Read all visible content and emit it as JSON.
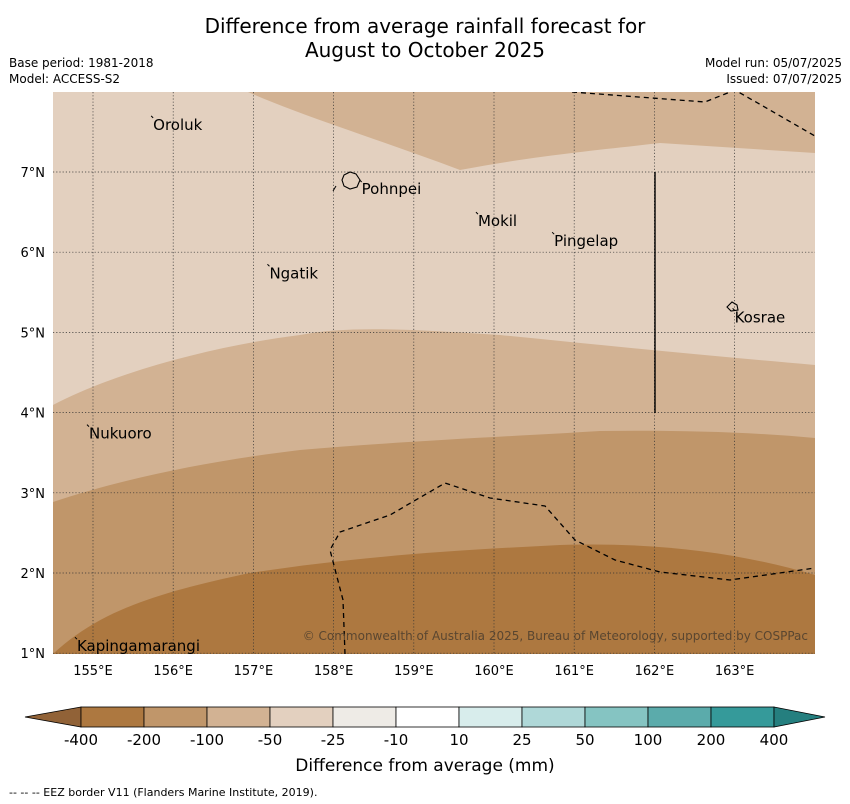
{
  "title": {
    "line1": "Difference from average rainfall forecast for",
    "line2": "August to October 2025"
  },
  "meta": {
    "base_period": "Base period: 1981-2018",
    "model": "Model: ACCESS-S2",
    "model_run": "Model run: 05/07/2025",
    "issued": "Issued: 07/07/2025"
  },
  "map": {
    "lon_range": [
      154.5,
      164.0
    ],
    "lat_range": [
      1.0,
      8.0
    ],
    "lon_ticks": [
      "155°E",
      "156°E",
      "157°E",
      "158°E",
      "159°E",
      "160°E",
      "161°E",
      "162°E",
      "163°E"
    ],
    "lat_ticks": [
      "1°N",
      "2°N",
      "3°N",
      "4°N",
      "5°N",
      "6°N",
      "7°N"
    ],
    "places": [
      {
        "name": "Oroluk",
        "lon": 155.75,
        "lat": 7.6
      },
      {
        "name": "Pohnpei",
        "lon": 158.35,
        "lat": 6.8
      },
      {
        "name": "Mokil",
        "lon": 159.8,
        "lat": 6.4
      },
      {
        "name": "Pingelap",
        "lon": 160.75,
        "lat": 6.15
      },
      {
        "name": "Ngatik",
        "lon": 157.2,
        "lat": 5.75
      },
      {
        "name": "Kosrae",
        "lon": 163.0,
        "lat": 5.2
      },
      {
        "name": "Nukuoro",
        "lon": 154.95,
        "lat": 3.75
      },
      {
        "name": "Kapingamarangi",
        "lon": 154.8,
        "lat": 1.1
      }
    ],
    "copyright": "© Commonwealth of Australia 2025, Bureau of Meteorology, supported by COSPPac",
    "colors": {
      "-400": "#ad7840",
      "-200": "#c0966a",
      "-100": "#d2b293",
      "-50": "#e3d0bf",
      "-25": "#eeebe6",
      "-10": "#ffffff",
      "10": "#d8edec",
      "25": "#afd8d8",
      "50": "#85c4c2",
      "100": "#5babab",
      "200": "#359a9a"
    }
  },
  "colorbar": {
    "labels": [
      "-400",
      "-200",
      "-100",
      "-50",
      "-25",
      "-10",
      "10",
      "25",
      "50",
      "100",
      "200",
      "400"
    ],
    "segment_colors": [
      "#ad7840",
      "#c0966a",
      "#d2b293",
      "#e3d0bf",
      "#eeebe6",
      "#ffffff",
      "#d8edec",
      "#afd8d8",
      "#85c4c2",
      "#5babab",
      "#359a9a"
    ],
    "low_extend_color": "#916237",
    "high_extend_color": "#257f7f",
    "title": "Difference from average (mm)"
  },
  "footnote": "--  --  -- EEZ border V11 (Flanders Marine Institute, 2019)."
}
